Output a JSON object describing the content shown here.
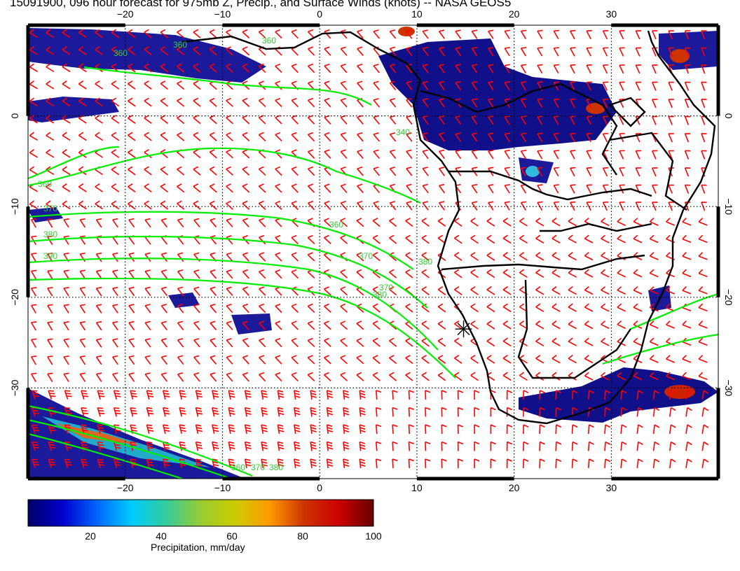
{
  "title": "15091900, 096 hour forecast for 975mb Z, Precip., and Surface Winds (knots) -- NASA GEOS5",
  "map": {
    "lon_range": [
      -30,
      41
    ],
    "lat_range": [
      -40,
      10
    ],
    "lon_ticks": [
      -20,
      -10,
      0,
      10,
      20,
      30
    ],
    "lat_ticks": [
      -30,
      -20,
      -10,
      0
    ],
    "lon_tick_labels": [
      "−20",
      "−10",
      "0",
      "10",
      "20",
      "30"
    ],
    "lat_tick_labels": [
      "−30",
      "−20",
      "−10",
      "0"
    ],
    "gridlines": "dotted",
    "marker": {
      "lon": 14.8,
      "lat": -23.5,
      "symbol": "asterisk"
    },
    "contour_labels": [
      "360",
      "360",
      "360",
      "340",
      "360",
      "370",
      "380",
      "390",
      "360",
      "370",
      "380",
      "370",
      "380",
      "360",
      "370",
      "380"
    ],
    "colors": {
      "coast": "#000000",
      "contour": "#00ff00",
      "wind_barb": "#ff0000",
      "precip_low": "#0a0a8c",
      "precip_high": "#8b0000"
    }
  },
  "colorbar": {
    "ticks": [
      "20",
      "40",
      "60",
      "80",
      "100"
    ],
    "tick_values": [
      20,
      40,
      60,
      80,
      100
    ],
    "range": [
      0,
      100
    ],
    "label": "Precipitation, mm/day",
    "stops": [
      "#000066",
      "#0000cc",
      "#0066ff",
      "#00ccff",
      "#33cc99",
      "#99cc33",
      "#cccc00",
      "#ff9900",
      "#cc3300",
      "#cc0000",
      "#660000"
    ]
  }
}
